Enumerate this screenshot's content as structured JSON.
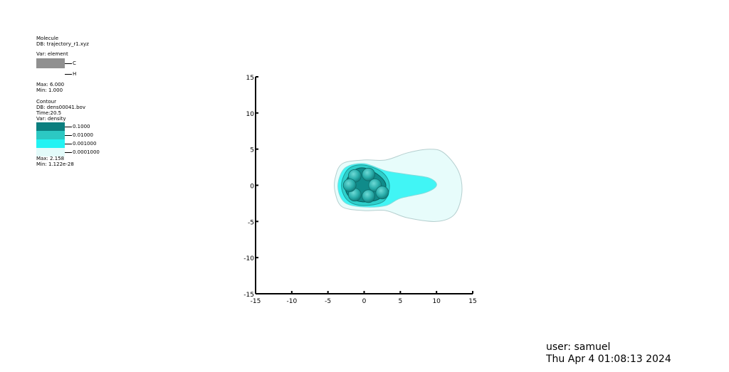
{
  "molecule_legend": {
    "title": "Molecule",
    "db": "DB: trajectory_r1.xyz",
    "var": "Var: element",
    "items": [
      {
        "label": "C",
        "color": "#909090"
      },
      {
        "label": "H",
        "color": "#ffffff"
      }
    ],
    "max": "Max:  6.000",
    "min": "Min:  1.000"
  },
  "contour_legend": {
    "title": "Contour",
    "db": "DB: dens00041.bov",
    "time": "Time:20.5",
    "var": "Var: density",
    "levels": [
      {
        "label": "0.1000",
        "color": "#0b7f7f"
      },
      {
        "label": "0.01000",
        "color": "#2cc8c3"
      },
      {
        "label": "0.001000",
        "color": "#23f3f3"
      },
      {
        "label": "0.0001000",
        "color": "#e3fbfa"
      }
    ],
    "max": "Max:  2.158",
    "min": "Min:  1.122e-28"
  },
  "chart_data": {
    "type": "heatmap",
    "title": "",
    "xlabel": "",
    "ylabel": "",
    "xlim": [
      -15,
      15
    ],
    "ylim": [
      -15,
      15
    ],
    "xticks": [
      -15,
      -10,
      -5,
      0,
      5,
      10,
      15
    ],
    "yticks": [
      -15,
      -10,
      -5,
      0,
      5,
      10,
      15
    ],
    "xtick_labels": [
      "-15",
      "-10",
      "-5",
      "0",
      "5",
      "10",
      "15"
    ],
    "ytick_labels": [
      "-15",
      "-10",
      "-5",
      "0",
      "5",
      "10",
      "15"
    ],
    "grid": false,
    "contours": [
      {
        "level": "0.0001000",
        "color": "#e3fbfa",
        "points": [
          [
            -4,
            1
          ],
          [
            -3,
            3
          ],
          [
            0,
            3.5
          ],
          [
            3,
            3.5
          ],
          [
            6,
            4.5
          ],
          [
            9,
            5
          ],
          [
            11,
            4.5
          ],
          [
            13,
            2
          ],
          [
            13.5,
            -1
          ],
          [
            12.5,
            -4
          ],
          [
            10,
            -5
          ],
          [
            6,
            -4.5
          ],
          [
            3,
            -3.5
          ],
          [
            0,
            -3.5
          ],
          [
            -3,
            -3
          ],
          [
            -4,
            -1
          ]
        ]
      },
      {
        "level": "0.001000",
        "color": "#23f3f3",
        "points": [
          [
            -3.5,
            0.8
          ],
          [
            -2.5,
            2.5
          ],
          [
            0,
            3
          ],
          [
            3,
            2
          ],
          [
            6,
            1.5
          ],
          [
            9,
            1
          ],
          [
            10,
            0
          ],
          [
            8.5,
            -1
          ],
          [
            5,
            -1.8
          ],
          [
            3,
            -2.8
          ],
          [
            0,
            -3
          ],
          [
            -2.5,
            -2.5
          ],
          [
            -3.5,
            -1
          ]
        ]
      },
      {
        "level": "0.01000",
        "color": "#2cc8c3",
        "points": [
          [
            -3,
            0.8
          ],
          [
            -2,
            2.4
          ],
          [
            0,
            2.8
          ],
          [
            2.5,
            1.8
          ],
          [
            3.5,
            0
          ],
          [
            2.7,
            -2.2
          ],
          [
            0,
            -2.8
          ],
          [
            -2,
            -2.3
          ],
          [
            -3,
            -0.9
          ]
        ]
      },
      {
        "level": "0.1000",
        "color": "#0b7f7f",
        "points": [
          [
            -2.5,
            0.6
          ],
          [
            -1.5,
            2
          ],
          [
            0,
            2.4
          ],
          [
            2,
            1.4
          ],
          [
            3,
            0
          ],
          [
            2.2,
            -1.8
          ],
          [
            0,
            -2.3
          ],
          [
            -1.8,
            -1.8
          ],
          [
            -2.6,
            -0.6
          ]
        ]
      }
    ],
    "atoms": [
      {
        "element": "C",
        "x": -1.3,
        "y": 1.3
      },
      {
        "element": "C",
        "x": 0.6,
        "y": 1.5
      },
      {
        "element": "C",
        "x": 1.5,
        "y": 0.0
      },
      {
        "element": "C",
        "x": 0.6,
        "y": -1.5
      },
      {
        "element": "C",
        "x": -1.3,
        "y": -1.3
      },
      {
        "element": "C",
        "x": -2.0,
        "y": 0.0
      },
      {
        "element": "C",
        "x": 2.5,
        "y": -1.0
      }
    ]
  },
  "footer": {
    "user": "user: samuel",
    "date": "Thu Apr  4 01:08:13 2024"
  }
}
